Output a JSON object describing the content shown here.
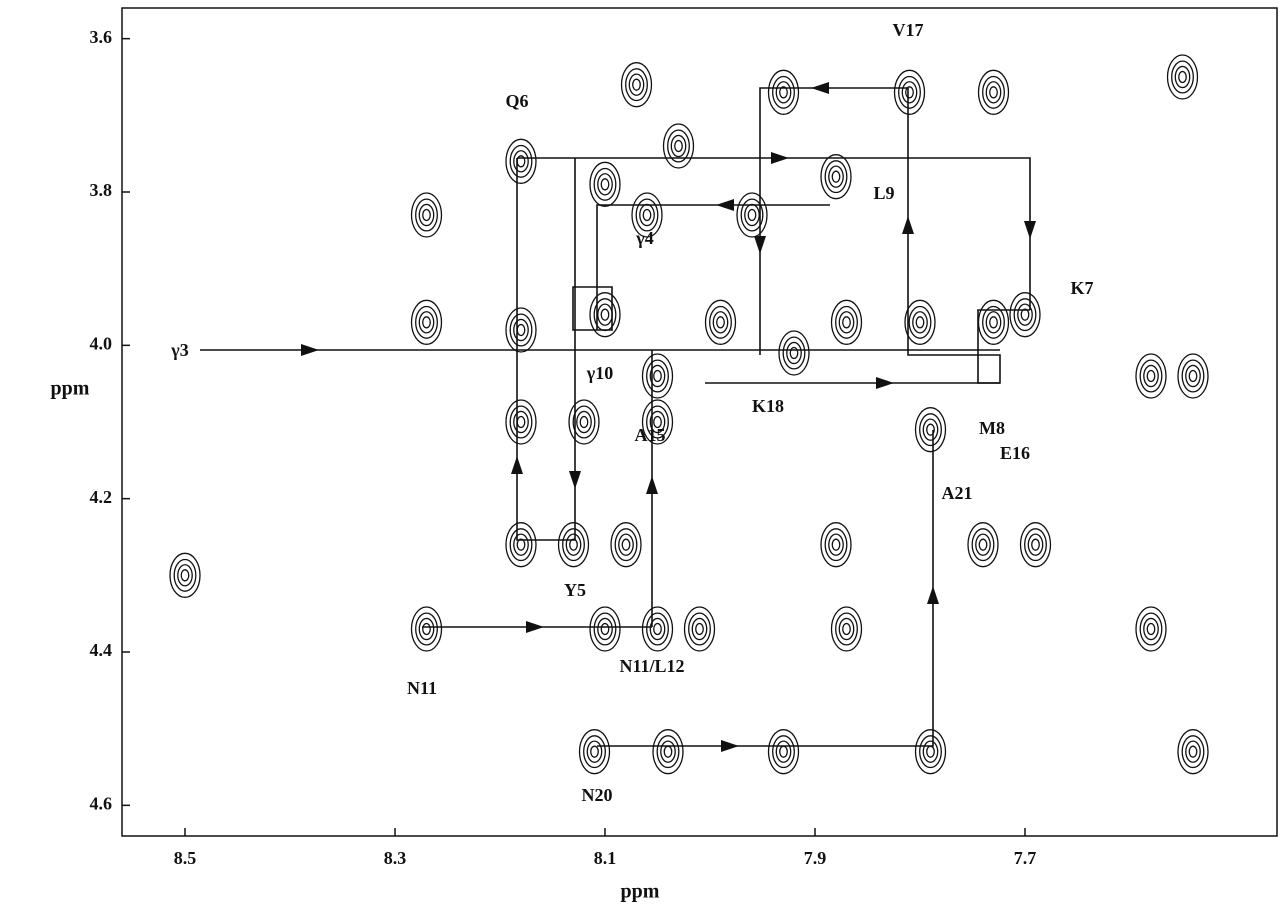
{
  "chart_data": {
    "type": "contour",
    "x": [
      8.18,
      7.81,
      7.93,
      8.07,
      7.73,
      7.55,
      7.88,
      8.06,
      8.1,
      8.03,
      7.96,
      8.27,
      8.27,
      8.18,
      8.1,
      8.05,
      7.99,
      7.92,
      7.87,
      7.8,
      7.73,
      7.7,
      7.58,
      7.54,
      8.12,
      8.18,
      8.05,
      7.79,
      8.18,
      8.13,
      8.08,
      7.88,
      7.74,
      7.69,
      8.5,
      8.27,
      8.05,
      8.01,
      8.1,
      7.87,
      7.58,
      8.11,
      7.93,
      7.79,
      7.54,
      8.04
    ],
    "values": [
      3.76,
      3.67,
      3.67,
      3.66,
      3.67,
      3.65,
      3.78,
      3.83,
      3.79,
      3.74,
      3.83,
      3.83,
      3.97,
      3.98,
      3.96,
      4.04,
      3.97,
      4.01,
      3.97,
      3.97,
      3.97,
      3.96,
      4.04,
      4.04,
      4.1,
      4.1,
      4.1,
      4.11,
      4.26,
      4.26,
      4.26,
      4.26,
      4.26,
      4.26,
      4.3,
      4.37,
      4.37,
      4.37,
      4.37,
      4.37,
      4.37,
      4.53,
      4.53,
      4.53,
      4.53,
      4.53
    ],
    "xlim": [
      8.56,
      7.46
    ],
    "ylim": [
      3.56,
      4.64
    ],
    "xticks": [
      8.5,
      8.3,
      8.1,
      7.9,
      7.7
    ],
    "yticks": [
      3.6,
      3.8,
      {
        "value": 4,
        "label": "4.0"
      },
      4.2,
      4.4,
      4.6
    ],
    "x_label": "ppm",
    "y_label": "ppm",
    "color": "#111111",
    "annotations": [
      "Q6",
      "V17",
      "L9",
      "γ4",
      "K7",
      "γ3",
      "γ10",
      "K18",
      "A15",
      "M8",
      "E16",
      "A21",
      "Y5",
      "N11",
      "N11/L12",
      "N20"
    ]
  }
}
